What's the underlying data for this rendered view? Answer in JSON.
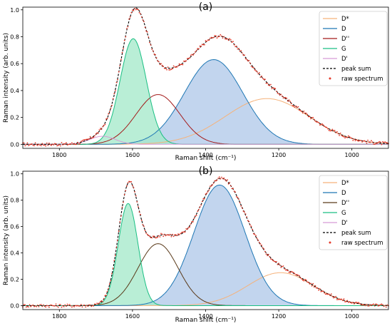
{
  "chart_data": [
    {
      "type": "line",
      "title": "(a)",
      "xlabel": "Raman shift (cm⁻¹)",
      "ylabel": "Raman intensity (arb. units)",
      "xlim": [
        1900,
        900
      ],
      "ylim": [
        -0.03,
        1.02
      ],
      "x_reversed": true,
      "xticks": [
        1800,
        1600,
        1400,
        1200,
        1000
      ],
      "yticks": [
        0.0,
        0.2,
        0.4,
        0.6,
        0.8,
        1.0
      ],
      "ytick_labels": [
        "0.0",
        "0.2",
        "0.4",
        "0.6",
        "0.8",
        "1.0"
      ],
      "legend_position": "top-right",
      "legend": [
        "D*",
        "D",
        "D''",
        "G",
        "D'",
        "peak sum",
        "raw spectrum"
      ],
      "peaks": [
        {
          "name": "D*",
          "center": 1232,
          "amplitude": 0.34,
          "sigma": 115,
          "color": "#f5b27a",
          "fill": false
        },
        {
          "name": "D",
          "center": 1378,
          "amplitude": 0.63,
          "sigma": 80,
          "color": "#1f77b4",
          "fill": true,
          "fill_color": "#aec7e8"
        },
        {
          "name": "D''",
          "center": 1530,
          "amplitude": 0.37,
          "sigma": 60,
          "color": "#a31a1a",
          "fill": false
        },
        {
          "name": "G",
          "center": 1598,
          "amplitude": 0.785,
          "sigma": 36,
          "color": "#1abf83",
          "fill": true,
          "fill_color": "#a2e8c8"
        },
        {
          "name": "D'",
          "center": 1682,
          "amplitude": 0.06,
          "sigma": 35,
          "color": "#d89bd8",
          "fill": false
        }
      ],
      "peak_sum_color": "#000000",
      "raw_spectrum_color": "#e53b2b"
    },
    {
      "type": "line",
      "title": "(b)",
      "xlabel": "Raman shift (cm⁻¹)",
      "ylabel": "Raman intensity (arb. units)",
      "xlim": [
        1900,
        900
      ],
      "ylim": [
        -0.03,
        1.02
      ],
      "x_reversed": true,
      "xticks": [
        1800,
        1600,
        1400,
        1200,
        1000
      ],
      "yticks": [
        0.0,
        0.2,
        0.4,
        0.6,
        0.8,
        1.0
      ],
      "ytick_labels": [
        "0.0",
        "0.2",
        "0.4",
        "0.6",
        "0.8",
        "1.0"
      ],
      "legend_position": "top-right",
      "legend": [
        "D*",
        "D",
        "D''",
        "G",
        "D'",
        "peak sum",
        "raw spectrum"
      ],
      "peaks": [
        {
          "name": "D*",
          "center": 1195,
          "amplitude": 0.25,
          "sigma": 90,
          "color": "#f5b27a",
          "fill": false
        },
        {
          "name": "D",
          "center": 1362,
          "amplitude": 0.915,
          "sigma": 70,
          "color": "#1f77b4",
          "fill": true,
          "fill_color": "#aec7e8"
        },
        {
          "name": "D''",
          "center": 1530,
          "amplitude": 0.47,
          "sigma": 55,
          "color": "#5a3a1a",
          "fill": false
        },
        {
          "name": "G",
          "center": 1612,
          "amplitude": 0.775,
          "sigma": 27,
          "color": "#1abf83",
          "fill": true,
          "fill_color": "#a2e8c8"
        },
        {
          "name": "D'",
          "center": 1660,
          "amplitude": 0.0,
          "sigma": 30,
          "color": "#d89bd8",
          "fill": false
        }
      ],
      "peak_sum_color": "#000000",
      "raw_spectrum_color": "#e53b2b"
    }
  ]
}
